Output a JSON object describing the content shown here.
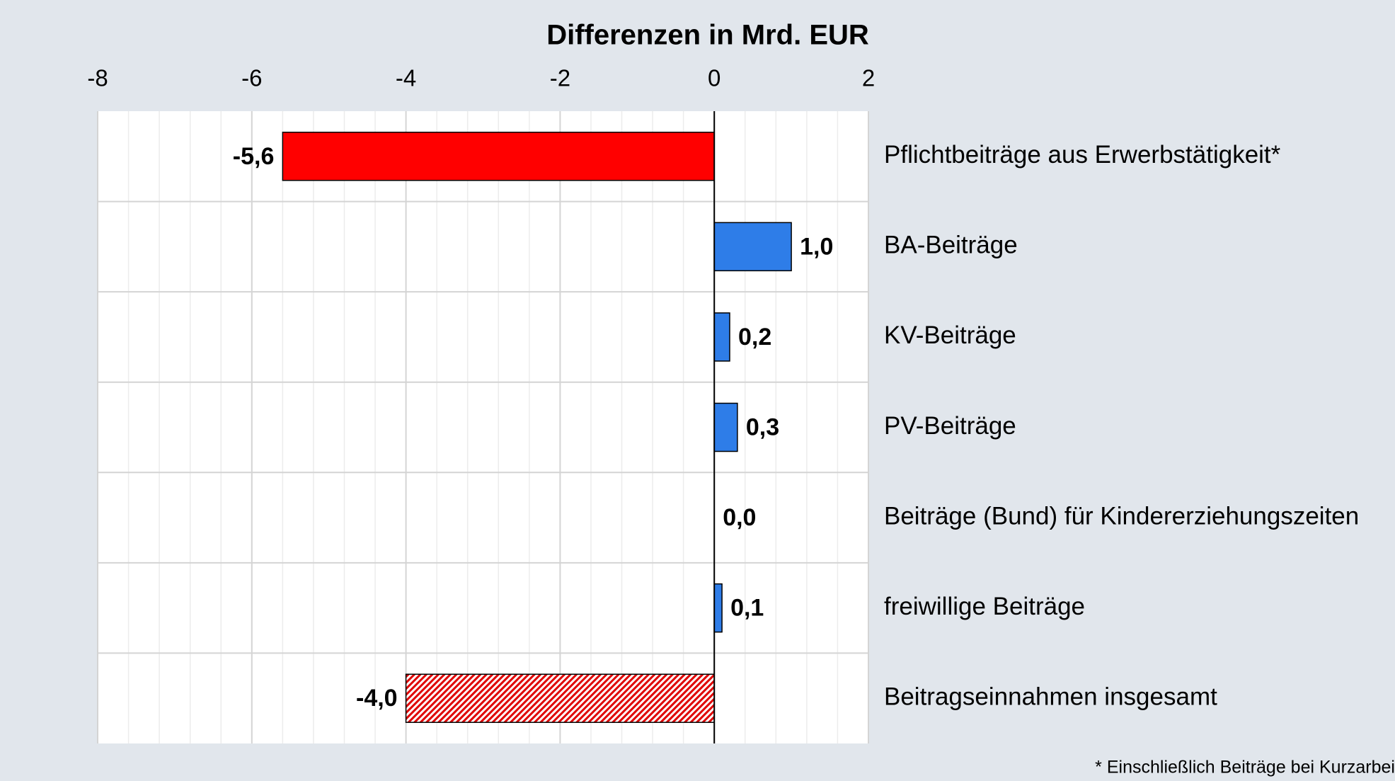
{
  "chart_data": {
    "type": "hbar",
    "title": "Differenzen  in Mrd. EUR",
    "categories": [
      "Pflichtbeiträge aus Erwerbstätigkeit*",
      "BA-Beiträge",
      "KV-Beiträge",
      "PV-Beiträge",
      "Beiträge (Bund) für Kindererziehungszeiten",
      "freiwillige Beiträge",
      "Beitragseinnahmen insgesamt"
    ],
    "values": [
      -5.6,
      1.0,
      0.2,
      0.3,
      0.0,
      0.1,
      -4.0
    ],
    "value_labels": [
      "-5,6",
      "1,0",
      "0,2",
      "0,3",
      "0,0",
      "0,1",
      "-4,0"
    ],
    "colors": [
      "#ff0000",
      "#2e7de8",
      "#2e7de8",
      "#2e7de8",
      "#2e7de8",
      "#2e7de8",
      "#e00000"
    ],
    "hatched": [
      false,
      false,
      false,
      false,
      false,
      false,
      true
    ],
    "xlim": [
      -8,
      2
    ],
    "xticks": [
      -8,
      -6,
      -4,
      -2,
      0,
      2
    ],
    "grid": true,
    "footnote": "* Einschließlich Beiträge bei Kurzarbei"
  }
}
